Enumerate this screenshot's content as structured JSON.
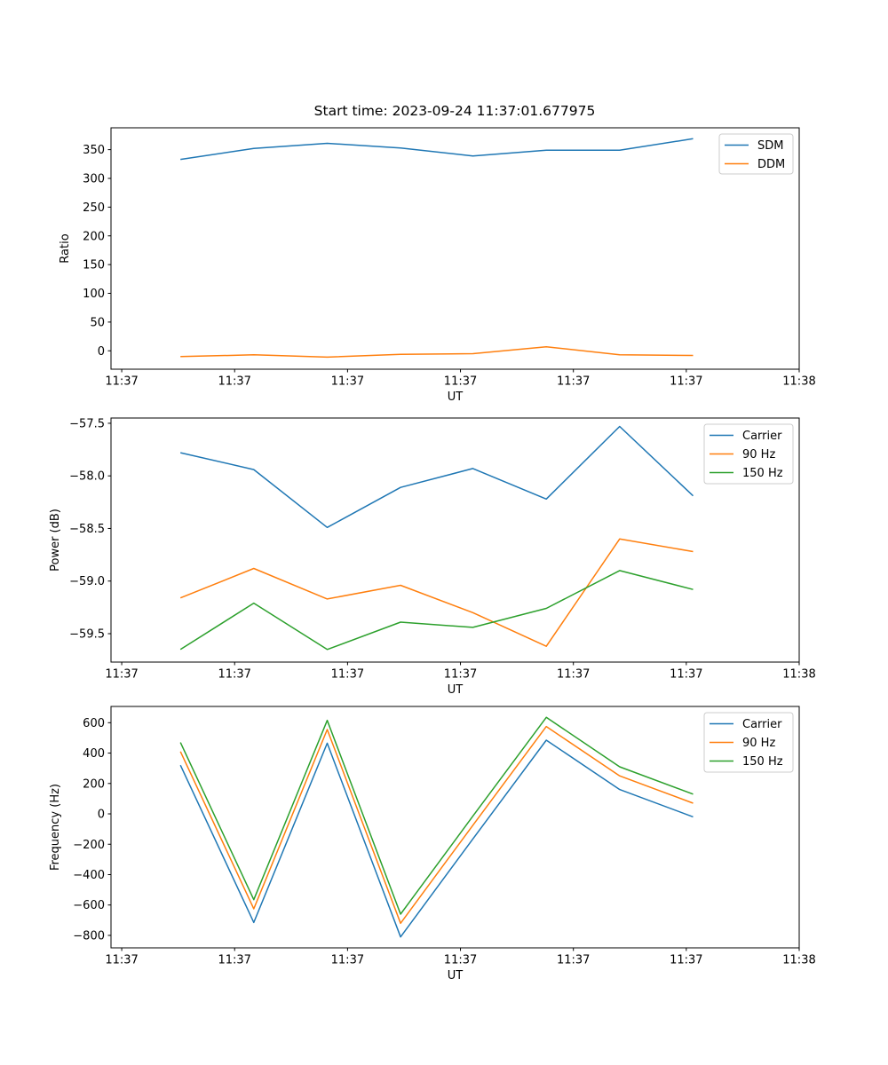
{
  "figure": {
    "title": "Start time: 2023-09-24 11:37:01.677975",
    "background": "#ffffff",
    "spine_color": "#000000",
    "legend_border_color": "#cccccc"
  },
  "chart_data": [
    {
      "type": "line",
      "name": "ratio",
      "xlabel": "UT",
      "ylabel": "Ratio",
      "x_seconds": [
        5.2,
        11.7,
        18.2,
        24.7,
        31.1,
        37.6,
        44.1,
        50.6
      ],
      "xlim": [
        -0.95,
        60
      ],
      "ylim": [
        -32,
        388
      ],
      "xticks": [
        0,
        10,
        20,
        30,
        40,
        50,
        60
      ],
      "xtick_labels": [
        "11:37",
        "11:37",
        "11:37",
        "11:37",
        "11:37",
        "11:37",
        "11:38"
      ],
      "yticks": [
        0,
        50,
        100,
        150,
        200,
        250,
        300,
        350
      ],
      "ytick_labels": [
        "0",
        "50",
        "100",
        "150",
        "200",
        "250",
        "300",
        "350"
      ],
      "grid": false,
      "legend_position": "upper right",
      "series": [
        {
          "name": "SDM",
          "color": "#1f77b4",
          "values": [
            333,
            352,
            361,
            353,
            339,
            349,
            349,
            369
          ]
        },
        {
          "name": "DDM",
          "color": "#ff7f0e",
          "values": [
            -10,
            -7,
            -11,
            -6,
            -5,
            7,
            -7,
            -8
          ]
        }
      ]
    },
    {
      "type": "line",
      "name": "power",
      "xlabel": "UT",
      "ylabel": "Power (dB)",
      "x_seconds": [
        5.2,
        11.7,
        18.2,
        24.7,
        31.1,
        37.6,
        44.1,
        50.6
      ],
      "xlim": [
        -0.95,
        60
      ],
      "ylim": [
        -59.77,
        -57.45
      ],
      "xticks": [
        0,
        10,
        20,
        30,
        40,
        50,
        60
      ],
      "xtick_labels": [
        "11:37",
        "11:37",
        "11:37",
        "11:37",
        "11:37",
        "11:37",
        "11:38"
      ],
      "yticks": [
        -59.5,
        -59.0,
        -58.5,
        -58.0,
        -57.5
      ],
      "ytick_labels": [
        "−59.5",
        "−59.0",
        "−58.5",
        "−58.0",
        "−57.5"
      ],
      "grid": false,
      "legend_position": "upper right",
      "series": [
        {
          "name": "Carrier",
          "color": "#1f77b4",
          "values": [
            -57.78,
            -57.94,
            -58.49,
            -58.11,
            -57.93,
            -58.22,
            -57.53,
            -58.19
          ]
        },
        {
          "name": "90 Hz",
          "color": "#ff7f0e",
          "values": [
            -59.16,
            -58.88,
            -59.17,
            -59.04,
            -59.3,
            -59.62,
            -58.6,
            -58.72
          ]
        },
        {
          "name": "150 Hz",
          "color": "#2ca02c",
          "values": [
            -59.65,
            -59.21,
            -59.65,
            -59.39,
            -59.44,
            -59.26,
            -58.9,
            -59.08
          ]
        }
      ]
    },
    {
      "type": "line",
      "name": "frequency",
      "xlabel": "UT",
      "ylabel": "Frequency (Hz)",
      "x_seconds": [
        5.2,
        11.7,
        18.2,
        24.7,
        31.1,
        37.6,
        44.1,
        50.6
      ],
      "xlim": [
        -0.95,
        60
      ],
      "ylim": [
        -882,
        707
      ],
      "xticks": [
        0,
        10,
        20,
        30,
        40,
        50,
        60
      ],
      "xtick_labels": [
        "11:37",
        "11:37",
        "11:37",
        "11:37",
        "11:37",
        "11:37",
        "11:38"
      ],
      "yticks": [
        -800,
        -600,
        -400,
        -200,
        0,
        200,
        400,
        600
      ],
      "ytick_labels": [
        "−800",
        "−600",
        "−400",
        "−200",
        "0",
        "200",
        "400",
        "600"
      ],
      "grid": false,
      "legend_position": "upper right",
      "series": [
        {
          "name": "Carrier",
          "color": "#1f77b4",
          "values": [
            320,
            -715,
            465,
            -810,
            -165,
            485,
            160,
            -20
          ]
        },
        {
          "name": "90 Hz",
          "color": "#ff7f0e",
          "values": [
            410,
            -625,
            555,
            -720,
            -75,
            575,
            250,
            70
          ]
        },
        {
          "name": "150 Hz",
          "color": "#2ca02c",
          "values": [
            470,
            -565,
            615,
            -660,
            -15,
            635,
            310,
            130
          ]
        }
      ]
    }
  ]
}
